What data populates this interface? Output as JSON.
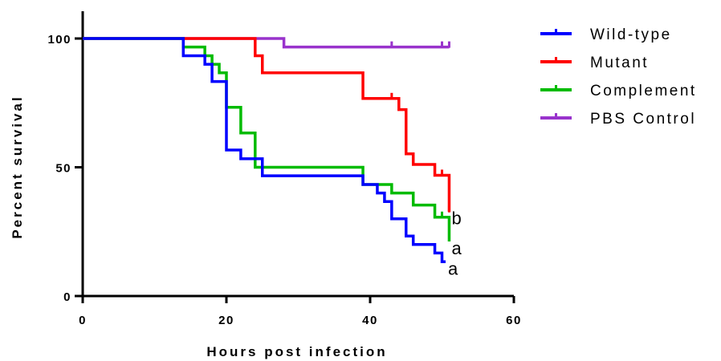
{
  "chart_data": {
    "type": "line",
    "title": "",
    "xlabel": "Hours post infection",
    "ylabel": "Percent survival",
    "xlim": [
      0,
      60
    ],
    "ylim": [
      0,
      100
    ],
    "xticks": [
      "0",
      "20",
      "40",
      "60"
    ],
    "yticks": [
      "0",
      "50",
      "100"
    ],
    "grid": false,
    "legend_position": "right",
    "series": [
      {
        "name": "Wild-type",
        "color": "#0000ff",
        "steps": [
          [
            0,
            100
          ],
          [
            14,
            93.3
          ],
          [
            17,
            90
          ],
          [
            18,
            83.3
          ],
          [
            20,
            56.7
          ],
          [
            22,
            53.3
          ],
          [
            25,
            46.7
          ],
          [
            39,
            43.3
          ],
          [
            41,
            40
          ],
          [
            42,
            36.7
          ],
          [
            43,
            30
          ],
          [
            45,
            23.3
          ],
          [
            46,
            20
          ],
          [
            49,
            16.7
          ],
          [
            50,
            13.3
          ],
          [
            50.5,
            13.3
          ]
        ],
        "censor": [],
        "annotation": "a"
      },
      {
        "name": "Mutant",
        "color": "#ff0000",
        "steps": [
          [
            0,
            100
          ],
          [
            24,
            93.3
          ],
          [
            25,
            86.7
          ],
          [
            39,
            76.7
          ],
          [
            44,
            72.4
          ],
          [
            45,
            55.2
          ],
          [
            46,
            51.1
          ],
          [
            49,
            46.9
          ],
          [
            51,
            32.8
          ],
          [
            51,
            32.8
          ]
        ],
        "censor": [
          [
            43,
            76.7
          ],
          [
            50,
            46.9
          ],
          [
            51,
            32.8
          ]
        ],
        "annotation": "b"
      },
      {
        "name": "Complement",
        "color": "#00bb00",
        "steps": [
          [
            0,
            100
          ],
          [
            14,
            96.7
          ],
          [
            17,
            93.3
          ],
          [
            18,
            90
          ],
          [
            19,
            86.7
          ],
          [
            20,
            73.3
          ],
          [
            22,
            63.3
          ],
          [
            24,
            50
          ],
          [
            39,
            43.3
          ],
          [
            43,
            40
          ],
          [
            46,
            35.3
          ],
          [
            49,
            30.6
          ],
          [
            51,
            21.2
          ],
          [
            51,
            21.2
          ]
        ],
        "censor": [
          [
            50,
            30.6
          ]
        ],
        "annotation": "a"
      },
      {
        "name": "PBS Control",
        "color": "#9933cc",
        "steps": [
          [
            0,
            100
          ],
          [
            28,
            96.7
          ],
          [
            51,
            96.7
          ]
        ],
        "censor": [
          [
            43,
            96.7
          ],
          [
            50,
            96.7
          ],
          [
            51,
            96.7
          ]
        ],
        "annotation": ""
      }
    ]
  }
}
